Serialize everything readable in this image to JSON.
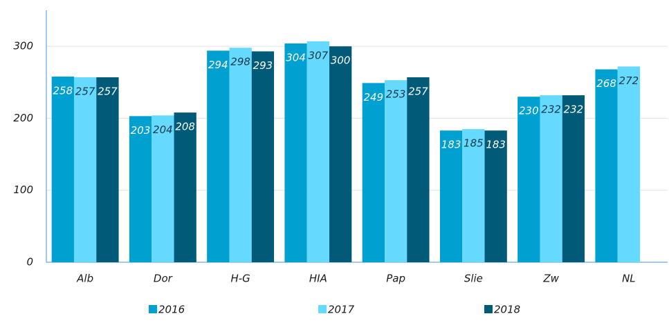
{
  "chart_data": {
    "type": "bar",
    "categories": [
      "Alb",
      "Dor",
      "H-G",
      "HIA",
      "Pap",
      "Slie",
      "Zw",
      "NL"
    ],
    "series": [
      {
        "name": "2016",
        "color": "#00a0d0",
        "values": [
          258,
          203,
          294,
          304,
          249,
          183,
          230,
          268
        ]
      },
      {
        "name": "2017",
        "color": "#66d9ff",
        "values": [
          257,
          204,
          298,
          307,
          253,
          185,
          232,
          272
        ]
      },
      {
        "name": "2018",
        "color": "#005a78",
        "values": [
          257,
          208,
          293,
          300,
          257,
          183,
          232,
          null
        ]
      }
    ],
    "ylim": [
      0,
      350
    ],
    "yticks": [
      0,
      100,
      200,
      300
    ],
    "grid": true,
    "legend": "bottom"
  }
}
